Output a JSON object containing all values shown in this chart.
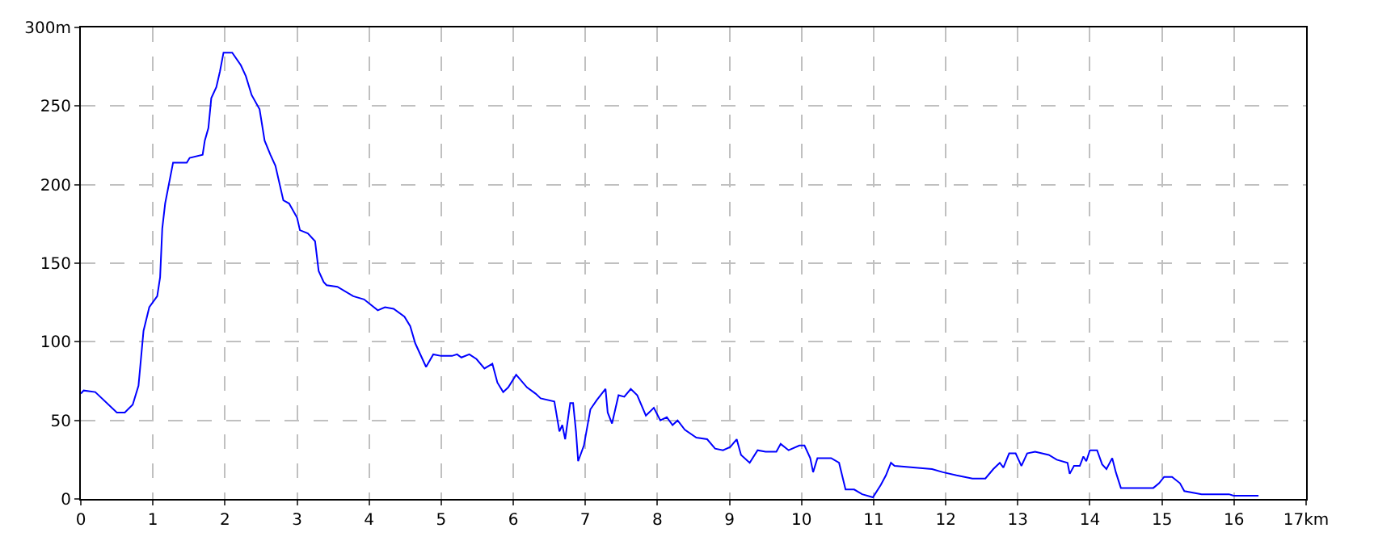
{
  "chart_data": {
    "type": "line",
    "x": [
      0,
      0.04,
      0.2,
      0.5,
      0.61,
      0.72,
      0.8,
      0.87,
      0.95,
      1.06,
      1.1,
      1.13,
      1.17,
      1.28,
      1.47,
      1.51,
      1.69,
      1.72,
      1.77,
      1.81,
      1.88,
      1.93,
      1.98,
      2.1,
      2.22,
      2.29,
      2.37,
      2.48,
      2.55,
      2.63,
      2.7,
      2.81,
      2.89,
      3.0,
      3.04,
      3.15,
      3.25,
      3.3,
      3.37,
      3.41,
      3.56,
      3.78,
      3.93,
      4.12,
      4.22,
      4.34,
      4.49,
      4.57,
      4.64,
      4.79,
      4.89,
      5.0,
      5.15,
      5.22,
      5.28,
      5.39,
      5.49,
      5.6,
      5.71,
      5.78,
      5.86,
      5.93,
      6.04,
      6.19,
      6.31,
      6.38,
      6.57,
      6.64,
      6.68,
      6.72,
      6.75,
      6.79,
      6.83,
      6.87,
      6.9,
      6.98,
      7.07,
      7.16,
      7.28,
      7.31,
      7.37,
      7.46,
      7.54,
      7.63,
      7.72,
      7.84,
      7.95,
      8.04,
      8.13,
      8.21,
      8.28,
      8.38,
      8.54,
      8.69,
      8.8,
      8.91,
      9.01,
      9.1,
      9.16,
      9.28,
      9.39,
      9.5,
      9.65,
      9.71,
      9.82,
      9.97,
      10.04,
      10.12,
      10.16,
      10.22,
      10.41,
      10.52,
      10.61,
      10.73,
      10.84,
      10.99,
      11.1,
      11.17,
      11.24,
      11.29,
      11.55,
      11.81,
      11.96,
      12.15,
      12.37,
      12.55,
      12.66,
      12.75,
      12.8,
      12.88,
      12.97,
      13.05,
      13.13,
      13.24,
      13.43,
      13.54,
      13.69,
      13.72,
      13.78,
      13.86,
      13.91,
      13.95,
      14.0,
      14.1,
      14.17,
      14.23,
      14.31,
      14.36,
      14.43,
      14.88,
      14.96,
      15.03,
      15.14,
      15.25,
      15.31,
      15.55,
      15.85,
      15.93,
      16.0,
      16.34
    ],
    "series": [
      {
        "color": "#0000ff",
        "values": [
          67,
          69,
          68,
          55,
          55,
          60,
          72,
          107,
          122,
          129,
          141,
          172,
          188,
          214,
          214,
          217,
          219,
          228,
          236,
          255,
          262,
          272,
          284,
          284,
          276,
          269,
          257,
          248,
          228,
          219,
          212,
          190,
          188,
          179,
          171,
          169,
          164,
          145,
          138,
          136,
          135,
          129,
          127,
          120,
          122,
          121,
          116,
          110,
          99,
          84,
          92,
          91,
          91,
          92,
          90,
          92,
          89,
          83,
          86,
          74,
          68,
          71,
          79,
          71,
          67,
          64,
          62,
          43,
          47,
          38,
          48,
          61,
          61,
          43,
          24,
          34,
          57,
          63,
          70,
          55,
          48,
          66,
          65,
          70,
          66,
          53,
          58,
          50,
          52,
          47,
          50,
          44,
          39,
          38,
          32,
          31,
          33,
          38,
          28,
          23,
          31,
          30,
          30,
          35,
          31,
          34,
          34,
          26,
          17,
          26,
          26,
          23,
          6,
          6,
          3,
          1,
          9,
          15,
          23,
          21,
          20,
          19,
          17,
          15,
          13,
          13,
          19,
          23,
          20,
          29,
          29,
          21,
          29,
          30,
          28,
          25,
          23,
          16,
          21,
          21,
          27,
          24,
          31,
          31,
          22,
          19,
          26,
          17,
          7,
          7,
          10,
          14,
          14,
          10,
          5,
          3,
          3,
          3,
          2,
          2
        ]
      }
    ],
    "xlim": [
      0,
      17
    ],
    "xticks": [
      0,
      1,
      2,
      3,
      4,
      5,
      6,
      7,
      8,
      9,
      10,
      11,
      12,
      13,
      14,
      15,
      16,
      {
        "value": 17,
        "label": "17km"
      }
    ],
    "ylim": [
      0,
      300
    ],
    "yticks": [
      0,
      50,
      100,
      150,
      200,
      250,
      {
        "value": 300,
        "label": "300m"
      }
    ],
    "grid": true,
    "marker": "none",
    "line_style": "solid",
    "legend": false
  }
}
